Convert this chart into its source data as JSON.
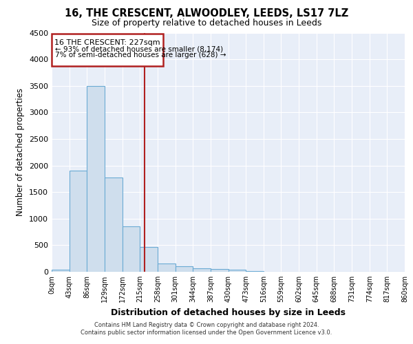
{
  "title": "16, THE CRESCENT, ALWOODLEY, LEEDS, LS17 7LZ",
  "subtitle": "Size of property relative to detached houses in Leeds",
  "xlabel": "Distribution of detached houses by size in Leeds",
  "ylabel": "Number of detached properties",
  "bar_color": "#cfdeed",
  "bar_edge_color": "#6aaad4",
  "background_color": "#e8eef8",
  "grid_color": "#ffffff",
  "vline_x": 227,
  "vline_color": "#b02020",
  "annotation_line1": "16 THE CRESCENT: 227sqm",
  "annotation_line2": "← 93% of detached houses are smaller (8,174)",
  "annotation_line3": "7% of semi-detached houses are larger (628) →",
  "annotation_box_color": "#b02020",
  "bin_edges": [
    0,
    43,
    86,
    129,
    172,
    215,
    258,
    301,
    344,
    387,
    430,
    473,
    516,
    559,
    602,
    645,
    688,
    731,
    774,
    817,
    860
  ],
  "bar_heights": [
    40,
    1900,
    3500,
    1780,
    850,
    460,
    160,
    100,
    70,
    55,
    40,
    10,
    0,
    0,
    0,
    0,
    0,
    0,
    0,
    0
  ],
  "tick_labels": [
    "0sqm",
    "43sqm",
    "86sqm",
    "129sqm",
    "172sqm",
    "215sqm",
    "258sqm",
    "301sqm",
    "344sqm",
    "387sqm",
    "430sqm",
    "473sqm",
    "516sqm",
    "559sqm",
    "602sqm",
    "645sqm",
    "688sqm",
    "731sqm",
    "774sqm",
    "817sqm",
    "860sqm"
  ],
  "ylim": [
    0,
    4500
  ],
  "yticks": [
    0,
    500,
    1000,
    1500,
    2000,
    2500,
    3000,
    3500,
    4000,
    4500
  ],
  "footer_line1": "Contains HM Land Registry data © Crown copyright and database right 2024.",
  "footer_line2": "Contains public sector information licensed under the Open Government Licence v3.0."
}
